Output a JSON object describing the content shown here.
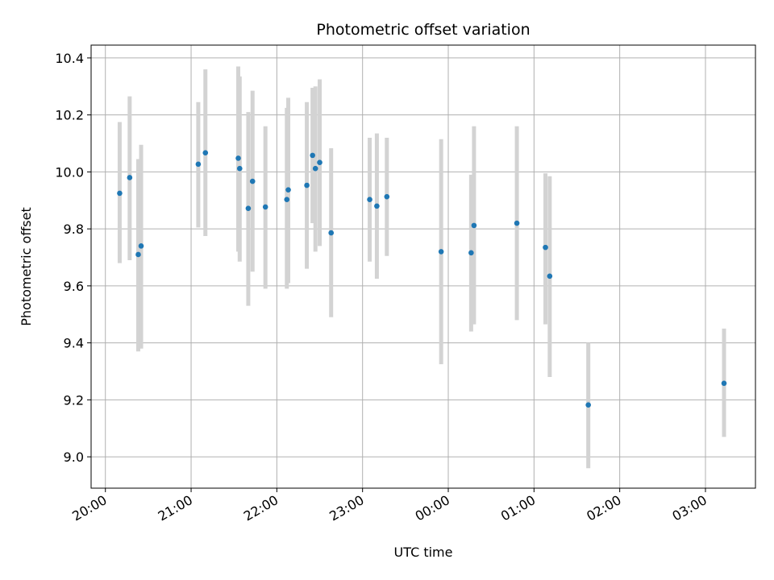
{
  "chart_data": {
    "type": "scatter",
    "title": "Photometric offset variation",
    "xlabel": "UTC time",
    "ylabel": "Photometric offset",
    "xlim": [
      "19:50",
      "03:35"
    ],
    "ylim": [
      8.89,
      10.445
    ],
    "x_ticks": [
      "20:00",
      "21:00",
      "22:00",
      "23:00",
      "00:00",
      "01:00",
      "02:00",
      "03:00"
    ],
    "y_ticks": [
      "9.0",
      "9.2",
      "9.4",
      "9.6",
      "9.8",
      "10.0",
      "10.2",
      "10.4"
    ],
    "grid": true,
    "colors": {
      "point": "#1f77b4",
      "errorbar": "#d3d3d3",
      "grid": "#b0b0b0"
    },
    "points": [
      {
        "x": "20:10",
        "y": 9.925,
        "ylow": 9.68,
        "yhigh": 10.175
      },
      {
        "x": "20:17",
        "y": 9.98,
        "ylow": 9.69,
        "yhigh": 10.265
      },
      {
        "x": "20:23",
        "y": 9.71,
        "ylow": 9.37,
        "yhigh": 10.045
      },
      {
        "x": "20:25",
        "y": 9.74,
        "ylow": 9.38,
        "yhigh": 10.095
      },
      {
        "x": "21:05",
        "y": 10.027,
        "ylow": 9.805,
        "yhigh": 10.245
      },
      {
        "x": "21:10",
        "y": 10.067,
        "ylow": 9.775,
        "yhigh": 10.36
      },
      {
        "x": "21:33",
        "y": 10.048,
        "ylow": 9.72,
        "yhigh": 10.37
      },
      {
        "x": "21:34",
        "y": 10.012,
        "ylow": 9.685,
        "yhigh": 10.335
      },
      {
        "x": "21:40",
        "y": 9.872,
        "ylow": 9.53,
        "yhigh": 10.21
      },
      {
        "x": "21:43",
        "y": 9.967,
        "ylow": 9.65,
        "yhigh": 10.285
      },
      {
        "x": "21:52",
        "y": 9.877,
        "ylow": 9.59,
        "yhigh": 10.16
      },
      {
        "x": "22:07",
        "y": 9.903,
        "ylow": 9.59,
        "yhigh": 10.225
      },
      {
        "x": "22:08",
        "y": 9.937,
        "ylow": 9.61,
        "yhigh": 10.26
      },
      {
        "x": "22:21",
        "y": 9.953,
        "ylow": 9.66,
        "yhigh": 10.245
      },
      {
        "x": "22:25",
        "y": 10.058,
        "ylow": 9.82,
        "yhigh": 10.295
      },
      {
        "x": "22:27",
        "y": 10.012,
        "ylow": 9.72,
        "yhigh": 10.3
      },
      {
        "x": "22:30",
        "y": 10.033,
        "ylow": 9.74,
        "yhigh": 10.325
      },
      {
        "x": "22:38",
        "y": 9.786,
        "ylow": 9.49,
        "yhigh": 10.083
      },
      {
        "x": "23:05",
        "y": 9.903,
        "ylow": 9.685,
        "yhigh": 10.12
      },
      {
        "x": "23:10",
        "y": 9.88,
        "ylow": 9.625,
        "yhigh": 10.135
      },
      {
        "x": "23:17",
        "y": 9.913,
        "ylow": 9.705,
        "yhigh": 10.12
      },
      {
        "x": "23:55",
        "y": 9.72,
        "ylow": 9.325,
        "yhigh": 10.115
      },
      {
        "x": "00:16",
        "y": 9.716,
        "ylow": 9.44,
        "yhigh": 9.99
      },
      {
        "x": "00:18",
        "y": 9.812,
        "ylow": 9.465,
        "yhigh": 10.16
      },
      {
        "x": "00:48",
        "y": 9.82,
        "ylow": 9.48,
        "yhigh": 10.16
      },
      {
        "x": "01:08",
        "y": 9.735,
        "ylow": 9.465,
        "yhigh": 9.995
      },
      {
        "x": "01:11",
        "y": 9.634,
        "ylow": 9.28,
        "yhigh": 9.985
      },
      {
        "x": "01:38",
        "y": 9.182,
        "ylow": 8.96,
        "yhigh": 9.4
      },
      {
        "x": "03:13",
        "y": 9.258,
        "ylow": 9.07,
        "yhigh": 9.45
      }
    ]
  }
}
